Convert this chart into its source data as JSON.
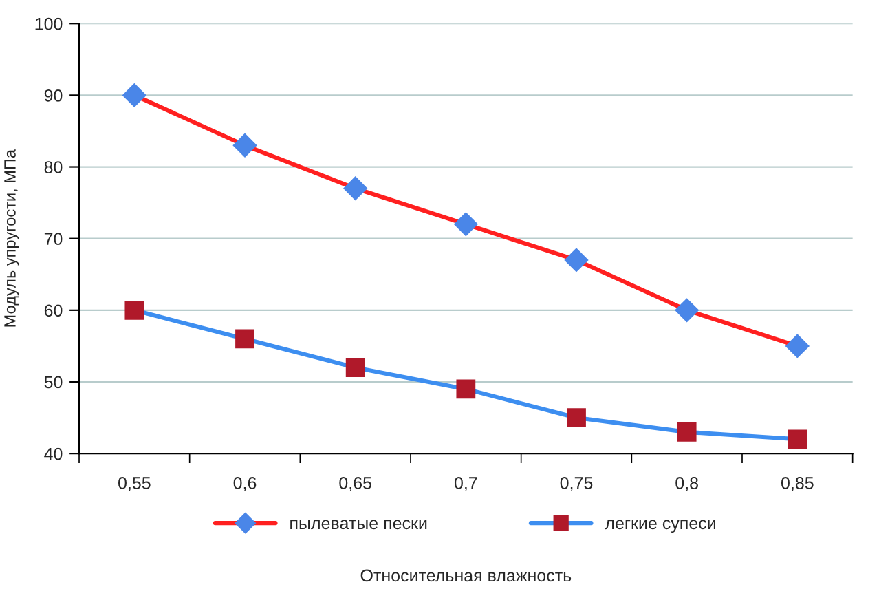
{
  "chart_data": {
    "type": "line",
    "xlabel": "Относительная влажность",
    "ylabel": "Модуль упругости, МПа",
    "categories": [
      "0,55",
      "0,6",
      "0,65",
      "0,7",
      "0,75",
      "0,8",
      "0,85"
    ],
    "series": [
      {
        "name": "пылеватые пески",
        "color": "#ff2020",
        "colors": [
          "#4a86e8",
          "#4a86e8",
          "#4a86e8",
          "#4a86e8",
          "#4a86e8",
          "#4a86e8",
          "#4a86e8"
        ],
        "marker": "diamond",
        "values": [
          90,
          83,
          77,
          72,
          67,
          60,
          55
        ]
      },
      {
        "name": "легкие супеси",
        "color": "#3d8ef0",
        "colors": [
          "#b0192a",
          "#b0192a",
          "#b0192a",
          "#b0192a",
          "#b0192a",
          "#b0192a",
          "#b0192a"
        ],
        "marker": "square",
        "values": [
          60,
          56,
          52,
          49,
          45,
          43,
          42
        ]
      }
    ],
    "ylim": [
      40,
      100
    ],
    "yticks": [
      40,
      50,
      60,
      70,
      80,
      90,
      100
    ],
    "grid": "y",
    "legend": "bottom",
    "line_style": "solid"
  }
}
